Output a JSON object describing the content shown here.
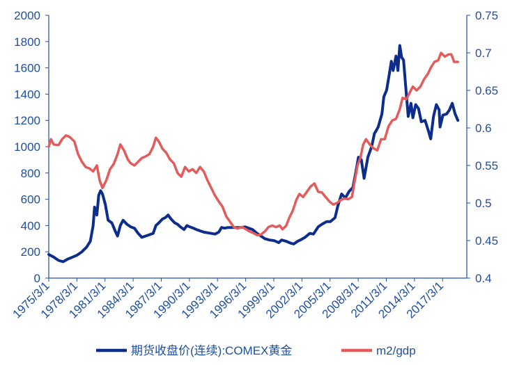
{
  "chart_data": {
    "type": "line",
    "grid": false,
    "legend_position": "bottom",
    "x_tick_labels": [
      "1975/3/1",
      "1978/3/1",
      "1981/3/1",
      "1984/3/1",
      "1987/3/1",
      "1990/3/1",
      "1993/3/1",
      "1996/3/1",
      "1999/3/1",
      "2002/3/1",
      "2005/3/1",
      "2008/3/1",
      "2011/3/1",
      "2014/3/1",
      "2017/3/1"
    ],
    "x_range": [
      1975.17,
      2019.75
    ],
    "y_left": {
      "range": [
        0,
        2000
      ],
      "ticks": [
        "0",
        "200",
        "400",
        "600",
        "800",
        "1000",
        "1200",
        "1400",
        "1600",
        "1800",
        "2000"
      ]
    },
    "y_right": {
      "range": [
        0.4,
        0.75
      ],
      "ticks": [
        "0.4",
        "0.45",
        "0.5",
        "0.55",
        "0.6",
        "0.65",
        "0.7",
        "0.75"
      ]
    },
    "series": [
      {
        "name": "期货收盘价(连续):COMEX黄金",
        "axis": "left",
        "color": "#0d2d8c",
        "points": [
          [
            1975.17,
            180
          ],
          [
            1975.7,
            160
          ],
          [
            1976.2,
            135
          ],
          [
            1976.7,
            125
          ],
          [
            1977.2,
            145
          ],
          [
            1977.7,
            160
          ],
          [
            1978.2,
            175
          ],
          [
            1978.7,
            200
          ],
          [
            1979.2,
            235
          ],
          [
            1979.6,
            280
          ],
          [
            1979.9,
            400
          ],
          [
            1980.05,
            540
          ],
          [
            1980.3,
            480
          ],
          [
            1980.5,
            630
          ],
          [
            1980.7,
            665
          ],
          [
            1980.9,
            640
          ],
          [
            1981.2,
            560
          ],
          [
            1981.5,
            440
          ],
          [
            1981.9,
            420
          ],
          [
            1982.3,
            350
          ],
          [
            1982.5,
            320
          ],
          [
            1982.8,
            400
          ],
          [
            1983.1,
            440
          ],
          [
            1983.5,
            410
          ],
          [
            1983.9,
            390
          ],
          [
            1984.3,
            380
          ],
          [
            1984.7,
            340
          ],
          [
            1985.1,
            310
          ],
          [
            1985.5,
            320
          ],
          [
            1985.9,
            330
          ],
          [
            1986.3,
            340
          ],
          [
            1986.6,
            400
          ],
          [
            1986.9,
            420
          ],
          [
            1987.3,
            450
          ],
          [
            1987.6,
            460
          ],
          [
            1987.9,
            480
          ],
          [
            1988.2,
            450
          ],
          [
            1988.6,
            420
          ],
          [
            1988.9,
            410
          ],
          [
            1989.2,
            390
          ],
          [
            1989.6,
            370
          ],
          [
            1989.9,
            400
          ],
          [
            1990.2,
            390
          ],
          [
            1990.6,
            380
          ],
          [
            1990.9,
            370
          ],
          [
            1991.3,
            360
          ],
          [
            1991.7,
            350
          ],
          [
            1992.1,
            345
          ],
          [
            1992.5,
            340
          ],
          [
            1992.9,
            335
          ],
          [
            1993.3,
            350
          ],
          [
            1993.6,
            385
          ],
          [
            1993.9,
            380
          ],
          [
            1994.3,
            385
          ],
          [
            1994.7,
            385
          ],
          [
            1995.1,
            385
          ],
          [
            1995.6,
            385
          ],
          [
            1996.1,
            390
          ],
          [
            1996.5,
            380
          ],
          [
            1996.9,
            370
          ],
          [
            1997.3,
            345
          ],
          [
            1997.8,
            320
          ],
          [
            1998.2,
            300
          ],
          [
            1998.7,
            290
          ],
          [
            1999.2,
            285
          ],
          [
            1999.7,
            270
          ],
          [
            2000.0,
            290
          ],
          [
            2000.5,
            280
          ],
          [
            2001.0,
            265
          ],
          [
            2001.3,
            260
          ],
          [
            2001.7,
            280
          ],
          [
            2002.0,
            290
          ],
          [
            2002.5,
            310
          ],
          [
            2003.0,
            340
          ],
          [
            2003.4,
            335
          ],
          [
            2003.9,
            390
          ],
          [
            2004.3,
            410
          ],
          [
            2004.8,
            430
          ],
          [
            2005.2,
            430
          ],
          [
            2005.7,
            460
          ],
          [
            2006.0,
            550
          ],
          [
            2006.4,
            640
          ],
          [
            2006.8,
            610
          ],
          [
            2007.2,
            660
          ],
          [
            2007.6,
            690
          ],
          [
            2007.9,
            800
          ],
          [
            2008.2,
            920
          ],
          [
            2008.5,
            900
          ],
          [
            2008.8,
            760
          ],
          [
            2009.2,
            920
          ],
          [
            2009.6,
            1000
          ],
          [
            2009.9,
            1100
          ],
          [
            2010.3,
            1150
          ],
          [
            2010.7,
            1250
          ],
          [
            2010.9,
            1380
          ],
          [
            2011.2,
            1430
          ],
          [
            2011.5,
            1560
          ],
          [
            2011.7,
            1650
          ],
          [
            2011.9,
            1580
          ],
          [
            2012.2,
            1690
          ],
          [
            2012.4,
            1580
          ],
          [
            2012.6,
            1770
          ],
          [
            2012.8,
            1680
          ],
          [
            2013.0,
            1660
          ],
          [
            2013.3,
            1400
          ],
          [
            2013.5,
            1230
          ],
          [
            2013.8,
            1330
          ],
          [
            2014.0,
            1220
          ],
          [
            2014.3,
            1320
          ],
          [
            2014.6,
            1290
          ],
          [
            2014.9,
            1190
          ],
          [
            2015.3,
            1200
          ],
          [
            2015.7,
            1110
          ],
          [
            2015.9,
            1060
          ],
          [
            2016.2,
            1230
          ],
          [
            2016.5,
            1320
          ],
          [
            2016.8,
            1280
          ],
          [
            2016.9,
            1150
          ],
          [
            2017.2,
            1240
          ],
          [
            2017.6,
            1250
          ],
          [
            2017.9,
            1280
          ],
          [
            2018.2,
            1330
          ],
          [
            2018.5,
            1250
          ],
          [
            2018.8,
            1200
          ]
        ]
      },
      {
        "name": "m2/gdp",
        "axis": "right",
        "color": "#e35b5b",
        "points": [
          [
            1975.17,
            0.575
          ],
          [
            1975.4,
            0.585
          ],
          [
            1975.7,
            0.578
          ],
          [
            1976.2,
            0.577
          ],
          [
            1976.6,
            0.585
          ],
          [
            1977.0,
            0.59
          ],
          [
            1977.4,
            0.588
          ],
          [
            1977.9,
            0.582
          ],
          [
            1978.3,
            0.565
          ],
          [
            1978.7,
            0.555
          ],
          [
            1979.1,
            0.548
          ],
          [
            1979.5,
            0.546
          ],
          [
            1979.9,
            0.542
          ],
          [
            1980.3,
            0.55
          ],
          [
            1980.6,
            0.53
          ],
          [
            1980.9,
            0.52
          ],
          [
            1981.3,
            0.53
          ],
          [
            1981.7,
            0.545
          ],
          [
            1982.1,
            0.552
          ],
          [
            1982.5,
            0.565
          ],
          [
            1982.8,
            0.578
          ],
          [
            1983.2,
            0.57
          ],
          [
            1983.6,
            0.558
          ],
          [
            1983.9,
            0.553
          ],
          [
            1984.3,
            0.55
          ],
          [
            1984.7,
            0.555
          ],
          [
            1985.1,
            0.56
          ],
          [
            1985.5,
            0.562
          ],
          [
            1985.9,
            0.565
          ],
          [
            1986.3,
            0.575
          ],
          [
            1986.6,
            0.587
          ],
          [
            1986.9,
            0.582
          ],
          [
            1987.3,
            0.572
          ],
          [
            1987.7,
            0.567
          ],
          [
            1988.1,
            0.558
          ],
          [
            1988.5,
            0.553
          ],
          [
            1988.9,
            0.54
          ],
          [
            1989.3,
            0.535
          ],
          [
            1989.7,
            0.548
          ],
          [
            1990.1,
            0.542
          ],
          [
            1990.5,
            0.545
          ],
          [
            1990.9,
            0.54
          ],
          [
            1991.3,
            0.548
          ],
          [
            1991.7,
            0.542
          ],
          [
            1992.1,
            0.53
          ],
          [
            1992.5,
            0.52
          ],
          [
            1992.9,
            0.51
          ],
          [
            1993.3,
            0.502
          ],
          [
            1993.7,
            0.495
          ],
          [
            1994.1,
            0.482
          ],
          [
            1994.5,
            0.475
          ],
          [
            1994.9,
            0.468
          ],
          [
            1995.3,
            0.466
          ],
          [
            1995.8,
            0.468
          ],
          [
            1996.2,
            0.465
          ],
          [
            1996.6,
            0.462
          ],
          [
            1997.0,
            0.46
          ],
          [
            1997.4,
            0.457
          ],
          [
            1997.8,
            0.458
          ],
          [
            1998.2,
            0.462
          ],
          [
            1998.6,
            0.468
          ],
          [
            1999.0,
            0.47
          ],
          [
            1999.4,
            0.468
          ],
          [
            1999.8,
            0.47
          ],
          [
            2000.1,
            0.465
          ],
          [
            2000.5,
            0.47
          ],
          [
            2000.8,
            0.48
          ],
          [
            2001.2,
            0.49
          ],
          [
            2001.6,
            0.505
          ],
          [
            2001.9,
            0.512
          ],
          [
            2002.3,
            0.508
          ],
          [
            2002.7,
            0.515
          ],
          [
            2003.1,
            0.522
          ],
          [
            2003.5,
            0.526
          ],
          [
            2003.9,
            0.515
          ],
          [
            2004.3,
            0.514
          ],
          [
            2004.7,
            0.508
          ],
          [
            2005.1,
            0.502
          ],
          [
            2005.5,
            0.498
          ],
          [
            2005.9,
            0.5
          ],
          [
            2006.3,
            0.504
          ],
          [
            2006.7,
            0.506
          ],
          [
            2007.1,
            0.505
          ],
          [
            2007.5,
            0.508
          ],
          [
            2007.8,
            0.53
          ],
          [
            2008.1,
            0.55
          ],
          [
            2008.4,
            0.56
          ],
          [
            2008.7,
            0.578
          ],
          [
            2009.0,
            0.585
          ],
          [
            2009.4,
            0.578
          ],
          [
            2009.8,
            0.573
          ],
          [
            2010.2,
            0.57
          ],
          [
            2010.6,
            0.585
          ],
          [
            2011.0,
            0.585
          ],
          [
            2011.4,
            0.602
          ],
          [
            2011.8,
            0.61
          ],
          [
            2012.2,
            0.612
          ],
          [
            2012.6,
            0.625
          ],
          [
            2012.9,
            0.64
          ],
          [
            2013.3,
            0.638
          ],
          [
            2013.7,
            0.648
          ],
          [
            2014.0,
            0.655
          ],
          [
            2014.4,
            0.65
          ],
          [
            2014.8,
            0.655
          ],
          [
            2015.2,
            0.665
          ],
          [
            2015.6,
            0.672
          ],
          [
            2015.9,
            0.68
          ],
          [
            2016.3,
            0.688
          ],
          [
            2016.7,
            0.69
          ],
          [
            2017.0,
            0.7
          ],
          [
            2017.4,
            0.695
          ],
          [
            2017.8,
            0.698
          ],
          [
            2018.1,
            0.698
          ],
          [
            2018.4,
            0.688
          ],
          [
            2018.8,
            0.688
          ]
        ]
      }
    ]
  }
}
